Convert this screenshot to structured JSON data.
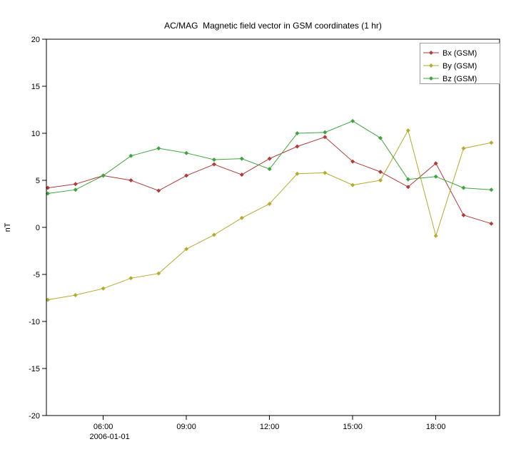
{
  "chart_data": {
    "type": "line",
    "title": "AC/MAG  Magnetic field vector in GSM coordinates (1 hr)",
    "xlabel": "",
    "ylabel": "nT",
    "ylim": [
      -20,
      20
    ],
    "yticks": [
      -20,
      -15,
      -10,
      -5,
      0,
      5,
      10,
      15,
      20
    ],
    "xlim_hours": [
      3.95,
      20.3
    ],
    "x_hours": [
      4,
      5,
      6,
      7,
      8,
      9,
      10,
      11,
      12,
      13,
      14,
      15,
      16,
      17,
      18,
      19,
      20
    ],
    "xticks": [
      {
        "hour": 6,
        "label": "06:00"
      },
      {
        "hour": 9,
        "label": "09:00"
      },
      {
        "hour": 12,
        "label": "12:00"
      },
      {
        "hour": 15,
        "label": "15:00"
      },
      {
        "hour": 18,
        "label": "18:00"
      }
    ],
    "x_date_label": "2006-01-01",
    "grid": false,
    "axis_color": "#000000",
    "legend_border_color": "#999999",
    "legend_position": "top-right",
    "series": [
      {
        "name": "Bx (GSM)",
        "color": "#b23b3b",
        "values": [
          4.2,
          4.6,
          5.5,
          5.0,
          3.9,
          5.5,
          6.7,
          5.6,
          7.3,
          8.6,
          9.6,
          7.0,
          5.9,
          4.3,
          6.8,
          1.3,
          0.4
        ]
      },
      {
        "name": "By (GSM)",
        "color": "#b5ab2e",
        "values": [
          -7.7,
          -7.2,
          -6.5,
          -5.4,
          -4.9,
          -2.3,
          -0.8,
          1.0,
          2.5,
          5.7,
          5.8,
          4.5,
          5.0,
          10.3,
          -0.9,
          8.4,
          9.0
        ]
      },
      {
        "name": "Bz (GSM)",
        "color": "#3fa43f",
        "values": [
          3.6,
          4.0,
          5.5,
          7.6,
          8.4,
          7.9,
          7.2,
          7.3,
          6.2,
          10.0,
          10.1,
          11.3,
          9.5,
          5.1,
          5.4,
          4.2,
          4.0
        ]
      }
    ],
    "legend_entries": [
      "Bx (GSM)",
      "By (GSM)",
      "Bz (GSM)"
    ]
  }
}
